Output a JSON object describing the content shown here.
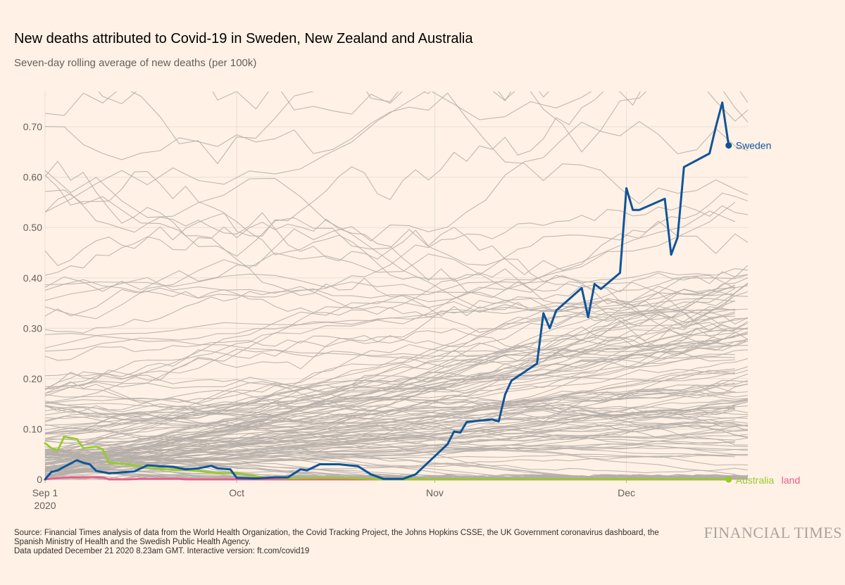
{
  "header": {
    "title": "New deaths attributed to Covid-19 in Sweden, New Zealand and Australia",
    "subtitle": "Seven-day rolling average of new deaths (per 100k)"
  },
  "footer": {
    "source_line": "Source: Financial Times analysis of data from the World Health Organization, the Covid Tracking Project, the Johns Hopkins CSSE, the UK Government coronavirus dashboard, the Spanish Ministry of Health and the Swedish Public Health Agency.",
    "updated_line": "Data updated December 21 2020 8.23am GMT. Interactive version: ft.com/covid19",
    "brand": "FINANCIAL TIMES"
  },
  "colors": {
    "background": "#fff1e5",
    "sweden": "#0f5499",
    "australia": "#96cc28",
    "new_zealand": "#e95d8c",
    "other_countries": "#b5aea8",
    "grid": "#e9dfd5"
  },
  "chart_data": {
    "type": "line",
    "title": "New deaths attributed to Covid-19 in Sweden, New Zealand and Australia",
    "subtitle": "Seven-day rolling average of new deaths (per 100k)",
    "x_range": [
      "2020-09-01",
      "2020-12-20"
    ],
    "ylim": [
      0,
      0.77
    ],
    "y_ticks": [
      0,
      0.1,
      0.2,
      0.3,
      0.4,
      0.5,
      0.6,
      0.7
    ],
    "y_tick_labels": [
      "0",
      "0.10",
      "0.20",
      "0.30",
      "0.40",
      "0.50",
      "0.60",
      "0.70"
    ],
    "x_ticks": [
      {
        "date": "2020-09-01",
        "label": "Sep 1",
        "sublabel": "2020"
      },
      {
        "date": "2020-10-01",
        "label": "Oct",
        "sublabel": ""
      },
      {
        "date": "2020-11-01",
        "label": "Nov",
        "sublabel": ""
      },
      {
        "date": "2020-12-01",
        "label": "Dec",
        "sublabel": ""
      }
    ],
    "grid": true,
    "background_series": "grey lines for other countries",
    "series": [
      {
        "name": "Sweden",
        "color": "#0f5499",
        "points": [
          [
            "2020-09-01",
            0.0
          ],
          [
            "2020-09-02",
            0.015
          ],
          [
            "2020-09-03",
            0.018
          ],
          [
            "2020-09-04",
            0.025
          ],
          [
            "2020-09-06",
            0.038
          ],
          [
            "2020-09-07",
            0.033
          ],
          [
            "2020-09-08",
            0.03
          ],
          [
            "2020-09-09",
            0.017
          ],
          [
            "2020-09-11",
            0.012
          ],
          [
            "2020-09-13",
            0.014
          ],
          [
            "2020-09-15",
            0.016
          ],
          [
            "2020-09-17",
            0.028
          ],
          [
            "2020-09-19",
            0.026
          ],
          [
            "2020-09-21",
            0.025
          ],
          [
            "2020-09-23",
            0.02
          ],
          [
            "2020-09-25",
            0.022
          ],
          [
            "2020-09-27",
            0.027
          ],
          [
            "2020-09-28",
            0.022
          ],
          [
            "2020-09-30",
            0.02
          ],
          [
            "2020-10-01",
            0.003
          ],
          [
            "2020-10-04",
            0.002
          ],
          [
            "2020-10-07",
            0.004
          ],
          [
            "2020-10-09",
            0.004
          ],
          [
            "2020-10-11",
            0.02
          ],
          [
            "2020-10-12",
            0.018
          ],
          [
            "2020-10-14",
            0.03
          ],
          [
            "2020-10-17",
            0.03
          ],
          [
            "2020-10-20",
            0.026
          ],
          [
            "2020-10-22",
            0.01
          ],
          [
            "2020-10-24",
            0.001
          ],
          [
            "2020-10-27",
            0.001
          ],
          [
            "2020-10-29",
            0.01
          ],
          [
            "2020-11-03",
            0.07
          ],
          [
            "2020-11-04",
            0.095
          ],
          [
            "2020-11-05",
            0.093
          ],
          [
            "2020-11-06",
            0.114
          ],
          [
            "2020-11-10",
            0.119
          ],
          [
            "2020-11-11",
            0.115
          ],
          [
            "2020-11-12",
            0.168
          ],
          [
            "2020-11-13",
            0.196
          ],
          [
            "2020-11-17",
            0.23
          ],
          [
            "2020-11-18",
            0.33
          ],
          [
            "2020-11-19",
            0.3
          ],
          [
            "2020-11-20",
            0.335
          ],
          [
            "2020-11-24",
            0.38
          ],
          [
            "2020-11-25",
            0.322
          ],
          [
            "2020-11-26",
            0.388
          ],
          [
            "2020-11-27",
            0.378
          ],
          [
            "2020-11-30",
            0.41
          ],
          [
            "2020-12-01",
            0.578
          ],
          [
            "2020-12-02",
            0.535
          ],
          [
            "2020-12-03",
            0.535
          ],
          [
            "2020-12-07",
            0.557
          ],
          [
            "2020-12-08",
            0.446
          ],
          [
            "2020-12-09",
            0.48
          ],
          [
            "2020-12-10",
            0.62
          ],
          [
            "2020-12-14",
            0.647
          ],
          [
            "2020-12-15",
            0.7
          ],
          [
            "2020-12-16",
            0.748
          ],
          [
            "2020-12-17",
            0.663
          ]
        ]
      },
      {
        "name": "Australia",
        "color": "#96cc28",
        "points": [
          [
            "2020-09-01",
            0.072
          ],
          [
            "2020-09-02",
            0.062
          ],
          [
            "2020-09-03",
            0.058
          ],
          [
            "2020-09-04",
            0.085
          ],
          [
            "2020-09-06",
            0.08
          ],
          [
            "2020-09-07",
            0.062
          ],
          [
            "2020-09-09",
            0.065
          ],
          [
            "2020-09-10",
            0.06
          ],
          [
            "2020-09-11",
            0.033
          ],
          [
            "2020-09-14",
            0.03
          ],
          [
            "2020-09-17",
            0.023
          ],
          [
            "2020-09-20",
            0.02
          ],
          [
            "2020-09-24",
            0.018
          ],
          [
            "2020-09-28",
            0.012
          ],
          [
            "2020-10-01",
            0.013
          ],
          [
            "2020-10-05",
            0.004
          ],
          [
            "2020-10-10",
            0.002
          ],
          [
            "2020-10-15",
            0.003
          ],
          [
            "2020-10-20",
            0.002
          ],
          [
            "2020-10-24",
            0.0
          ],
          [
            "2020-12-17",
            0.0
          ]
        ]
      },
      {
        "name": "New Zealand",
        "color": "#e95d8c",
        "points": [
          [
            "2020-09-01",
            0.0
          ],
          [
            "2020-09-04",
            0.004
          ],
          [
            "2020-09-08",
            0.004
          ],
          [
            "2020-09-10",
            0.004
          ],
          [
            "2020-09-11",
            0.0
          ],
          [
            "2020-09-14",
            0.0
          ],
          [
            "2020-09-16",
            0.001
          ],
          [
            "2020-09-22",
            0.001
          ],
          [
            "2020-09-23",
            0.0
          ],
          [
            "2020-12-17",
            0.0
          ]
        ]
      }
    ],
    "end_labels": [
      {
        "series": "Sweden",
        "text": "Sweden"
      },
      {
        "series": "Australia",
        "text": "Australia"
      },
      {
        "series": "New Zealand",
        "text": "land"
      }
    ]
  }
}
